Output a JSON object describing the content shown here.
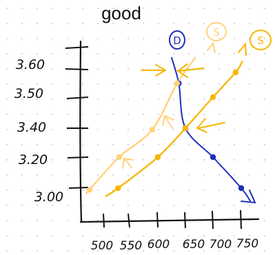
{
  "chart_data": {
    "type": "line",
    "title": "good",
    "xlabel": "",
    "ylabel": "",
    "x_ticks": [
      "500",
      "550",
      "600",
      "650",
      "700",
      "750"
    ],
    "y_ticks": [
      "3.00",
      "3.20",
      "3.40",
      "3.50",
      "3.60"
    ],
    "series": [
      {
        "name": "D",
        "color": "#1f2dbd",
        "x": [
          638,
          650,
          700,
          750
        ],
        "y": [
          3.55,
          3.4,
          3.2,
          3.0
        ]
      },
      {
        "name": "S",
        "color": "#ffd27a",
        "x": [
          475,
          530,
          590,
          635
        ],
        "y": [
          2.99,
          3.2,
          3.39,
          3.55
        ]
      },
      {
        "name": "S",
        "color": "#f5b700",
        "x": [
          528,
          600,
          650,
          700,
          740
        ],
        "y": [
          3.0,
          3.2,
          3.4,
          3.5,
          3.59
        ]
      }
    ],
    "colors": {
      "axis": "#111111",
      "grid_dots": "#cccccc"
    }
  }
}
